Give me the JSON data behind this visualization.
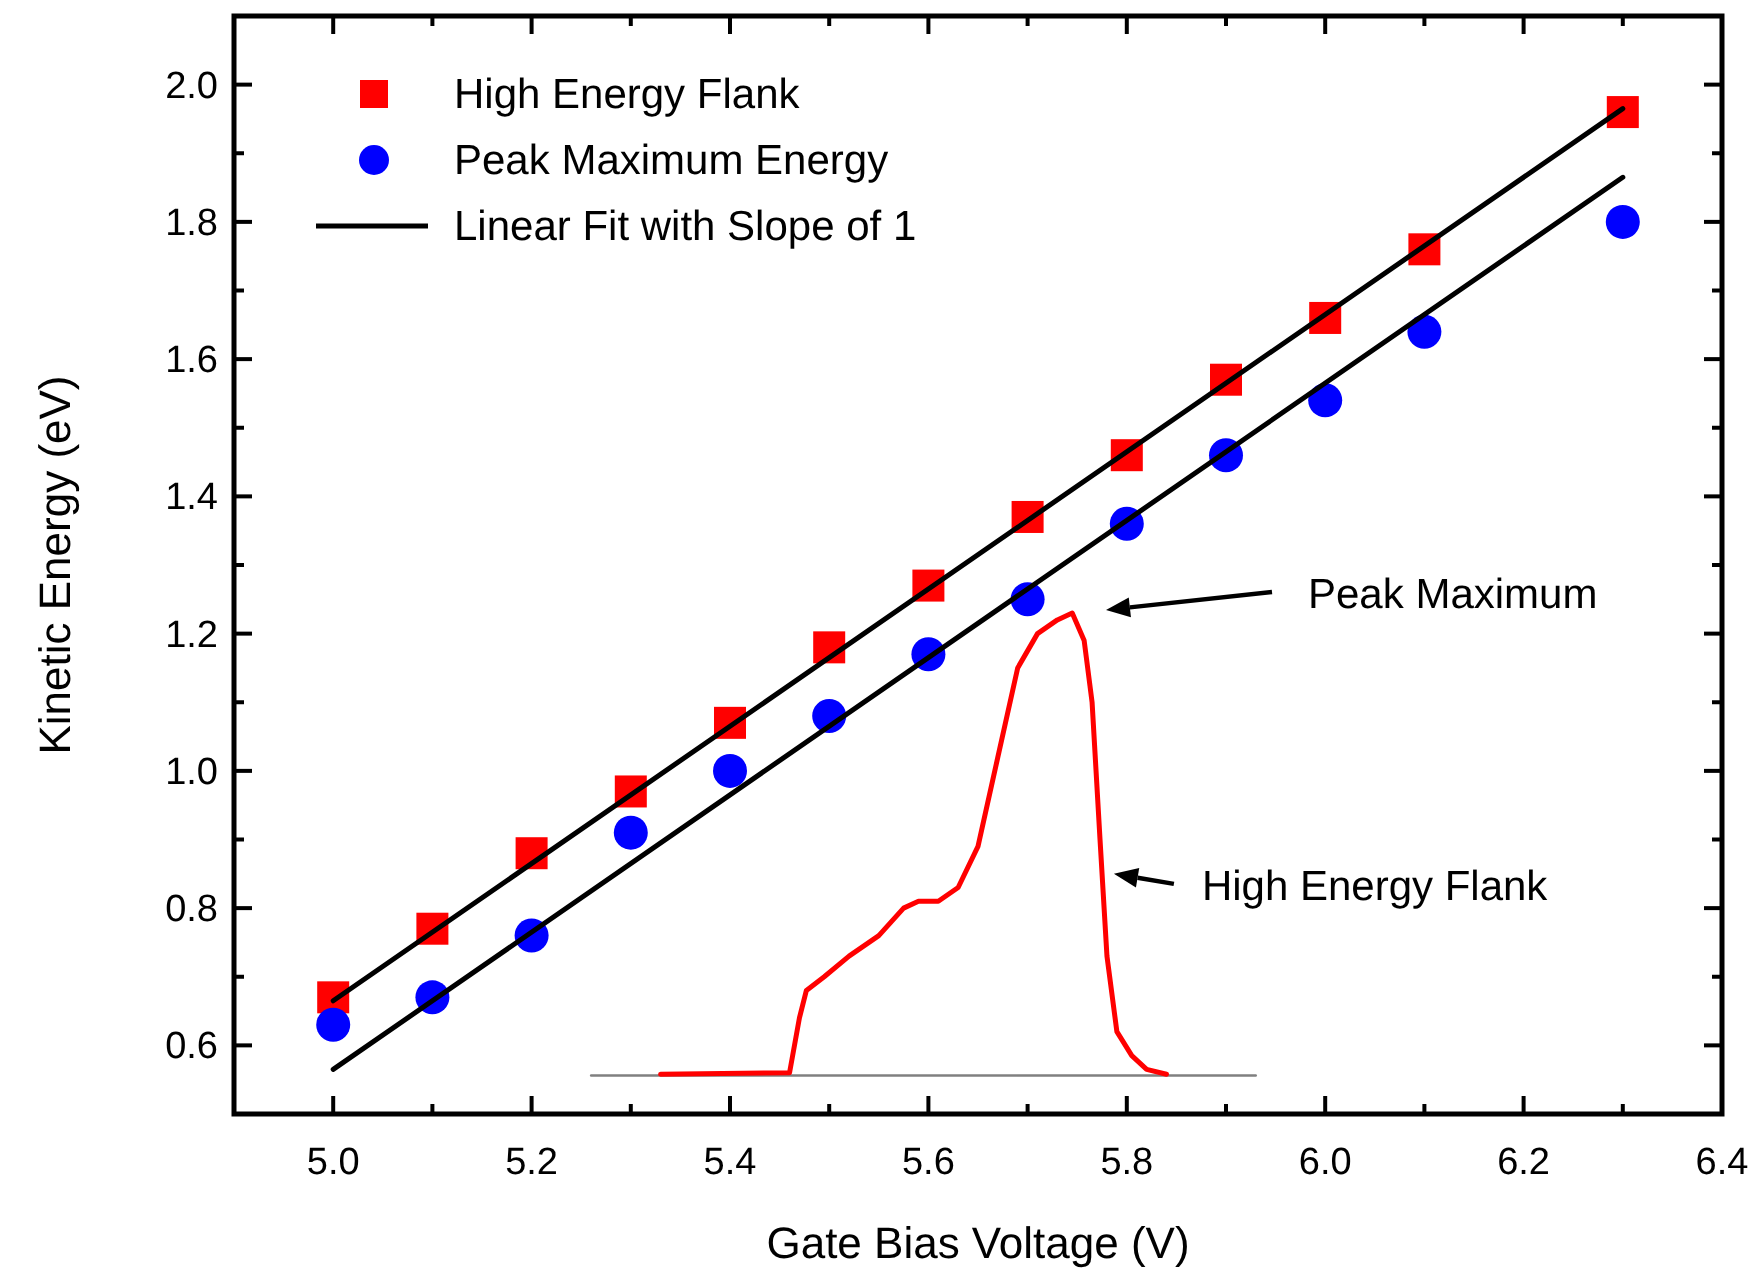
{
  "chart_data": {
    "type": "scatter",
    "xlabel": "Gate Bias Voltage (V)",
    "ylabel": "Kinetic Energy (eV)",
    "x": [
      5.0,
      5.1,
      5.2,
      5.3,
      5.4,
      5.5,
      5.6,
      5.7,
      5.8,
      5.9,
      6.0,
      6.1,
      6.3
    ],
    "xlim": [
      4.9,
      6.4
    ],
    "ylim": [
      0.5,
      2.1
    ],
    "xticks": [
      {
        "value": 5.0,
        "label": "5.0"
      },
      {
        "value": 5.1,
        "label": null
      },
      {
        "value": 5.2,
        "label": "5.2"
      },
      {
        "value": 5.3,
        "label": null
      },
      {
        "value": 5.4,
        "label": "5.4"
      },
      {
        "value": 5.5,
        "label": null
      },
      {
        "value": 5.6,
        "label": "5.6"
      },
      {
        "value": 5.7,
        "label": null
      },
      {
        "value": 5.8,
        "label": "5.8"
      },
      {
        "value": 5.9,
        "label": null
      },
      {
        "value": 6.0,
        "label": "6.0"
      },
      {
        "value": 6.1,
        "label": null
      },
      {
        "value": 6.2,
        "label": "6.2"
      },
      {
        "value": 6.3,
        "label": null
      },
      {
        "value": 6.4,
        "label": "6.4"
      }
    ],
    "yticks": [
      {
        "value": 0.6,
        "label": "0.6"
      },
      {
        "value": 0.7,
        "label": null
      },
      {
        "value": 0.8,
        "label": "0.8"
      },
      {
        "value": 0.9,
        "label": null
      },
      {
        "value": 1.0,
        "label": "1.0"
      },
      {
        "value": 1.1,
        "label": null
      },
      {
        "value": 1.2,
        "label": "1.2"
      },
      {
        "value": 1.3,
        "label": null
      },
      {
        "value": 1.4,
        "label": "1.4"
      },
      {
        "value": 1.5,
        "label": null
      },
      {
        "value": 1.6,
        "label": "1.6"
      },
      {
        "value": 1.7,
        "label": null
      },
      {
        "value": 1.8,
        "label": "1.8"
      },
      {
        "value": 1.9,
        "label": null
      },
      {
        "value": 2.0,
        "label": "2.0"
      }
    ],
    "grid": false,
    "legend": "top left",
    "series": [
      {
        "name": "High Energy Flank",
        "marker": "square",
        "color": "#ff0000",
        "values": [
          0.67,
          0.77,
          0.88,
          0.97,
          1.07,
          1.18,
          1.27,
          1.37,
          1.46,
          1.57,
          1.66,
          1.76,
          1.96
        ]
      },
      {
        "name": "Peak Maximum Energy",
        "marker": "circle",
        "color": "#0000ff",
        "values": [
          0.63,
          0.67,
          0.76,
          0.91,
          1.0,
          1.08,
          1.17,
          1.25,
          1.36,
          1.46,
          1.54,
          1.64,
          1.8
        ]
      },
      {
        "name": "Linear Fit with Slope of 1",
        "type": "line",
        "color": "#000000",
        "x": [
          5.0,
          6.3
        ],
        "values": [
          0.665,
          1.965
        ]
      },
      {
        "type": "line",
        "color": "#000000",
        "x": [
          5.0,
          6.3
        ],
        "values": [
          0.565,
          1.865
        ]
      },
      {
        "type": "line",
        "color": "#808080",
        "x": [
          5.26,
          5.93
        ],
        "values": [
          0.556,
          0.556
        ]
      },
      {
        "type": "line",
        "color": "#ff0000",
        "x": [
          5.33,
          5.46,
          5.47,
          5.477,
          5.495,
          5.52,
          5.55,
          5.575,
          5.59,
          5.61,
          5.63,
          5.65,
          5.67,
          5.69,
          5.71,
          5.73,
          5.745,
          5.757,
          5.765,
          5.773,
          5.78,
          5.79,
          5.805,
          5.82,
          5.84
        ],
        "values": [
          0.558,
          0.56,
          0.64,
          0.68,
          0.7,
          0.73,
          0.76,
          0.8,
          0.81,
          0.81,
          0.83,
          0.89,
          1.02,
          1.15,
          1.2,
          1.22,
          1.23,
          1.19,
          1.1,
          0.9,
          0.73,
          0.62,
          0.585,
          0.565,
          0.558
        ]
      }
    ],
    "annotations": [
      "Peak Maximum",
      {
        "text": "High Energy Flank",
        "x": 5.787,
        "y": 0.85
      }
    ]
  }
}
